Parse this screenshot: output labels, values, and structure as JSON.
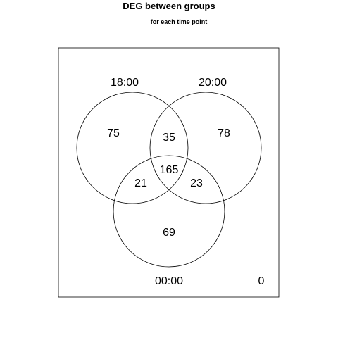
{
  "header": {
    "title": "DEG between groups",
    "subtitle": "for each time point"
  },
  "venn": {
    "sets": [
      "18:00",
      "20:00",
      "00:00"
    ],
    "regions": {
      "only_18": "75",
      "only_20": "78",
      "only_00": "69",
      "18_and_20": "35",
      "18_and_00": "21",
      "20_and_00": "23",
      "all_three": "165",
      "outside": "0"
    }
  },
  "colors": {
    "background": "#ffffff",
    "stroke": "#000000"
  }
}
